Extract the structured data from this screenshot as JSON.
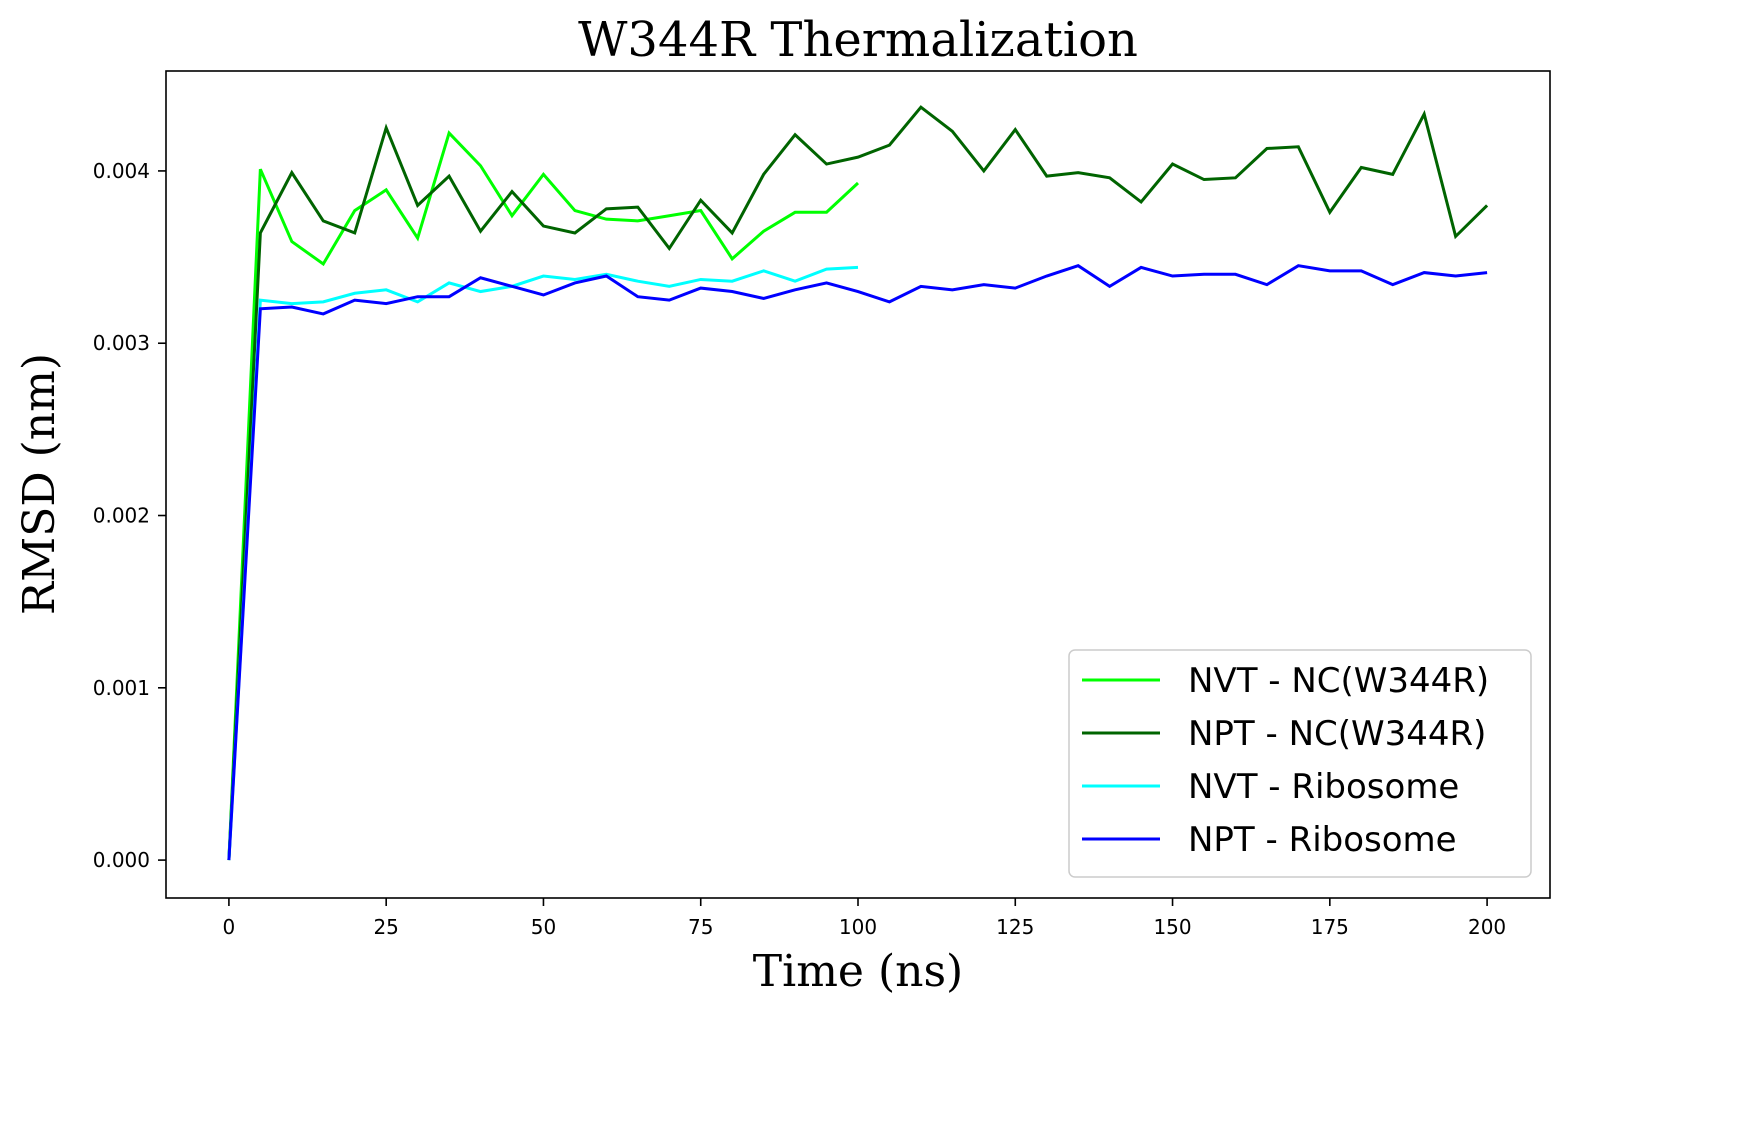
{
  "chart_data": {
    "type": "line",
    "title": "W344R Thermalization",
    "xlabel": "Time (ns)",
    "ylabel": "RMSD (nm)",
    "xlim": [
      -10,
      210
    ],
    "ylim": [
      -0.00022,
      0.00458
    ],
    "xticks": [
      0,
      25,
      50,
      75,
      100,
      125,
      150,
      175,
      200
    ],
    "xtick_labels": [
      "0",
      "25",
      "50",
      "75",
      "100",
      "125",
      "150",
      "175",
      "200"
    ],
    "yticks": [
      0,
      0.001,
      0.002,
      0.003,
      0.004
    ],
    "ytick_labels": [
      "0.000",
      "0.001",
      "0.002",
      "0.003",
      "0.004"
    ],
    "grid": false,
    "legend_position": "lower-right",
    "series": [
      {
        "name": "NVT - NC(W344R)",
        "color": "#00ff00",
        "x": [
          0,
          5,
          10,
          15,
          20,
          25,
          30,
          35,
          40,
          45,
          50,
          55,
          60,
          65,
          70,
          75,
          80,
          85,
          90,
          95,
          100
        ],
        "y": [
          0,
          0.00401,
          0.00359,
          0.00346,
          0.00377,
          0.00389,
          0.00361,
          0.00422,
          0.00403,
          0.00374,
          0.00398,
          0.00377,
          0.00372,
          0.00371,
          0.00374,
          0.00377,
          0.00349,
          0.00365,
          0.00376,
          0.00376,
          0.00393
        ]
      },
      {
        "name": "NPT - NC(W344R)",
        "color": "#006400",
        "x": [
          0,
          5,
          10,
          15,
          20,
          25,
          30,
          35,
          40,
          45,
          50,
          55,
          60,
          65,
          70,
          75,
          80,
          85,
          90,
          95,
          100,
          105,
          110,
          115,
          120,
          125,
          130,
          135,
          140,
          145,
          150,
          155,
          160,
          165,
          170,
          175,
          180,
          185,
          190,
          195,
          200
        ],
        "y": [
          0,
          0.00364,
          0.00399,
          0.00371,
          0.00364,
          0.00425,
          0.0038,
          0.00397,
          0.00365,
          0.00388,
          0.00368,
          0.00364,
          0.00378,
          0.00379,
          0.00355,
          0.00383,
          0.00364,
          0.00398,
          0.00421,
          0.00404,
          0.00408,
          0.00415,
          0.00437,
          0.00423,
          0.004,
          0.00424,
          0.00397,
          0.00399,
          0.00396,
          0.00382,
          0.00404,
          0.00395,
          0.00396,
          0.00413,
          0.00414,
          0.00376,
          0.00402,
          0.00398,
          0.00433,
          0.00362,
          0.0038
        ]
      },
      {
        "name": "NVT - Ribosome",
        "color": "#00ffff",
        "x": [
          0,
          5,
          10,
          15,
          20,
          25,
          30,
          35,
          40,
          45,
          50,
          55,
          60,
          65,
          70,
          75,
          80,
          85,
          90,
          95,
          100
        ],
        "y": [
          0,
          0.00325,
          0.00323,
          0.00324,
          0.00329,
          0.00331,
          0.00324,
          0.00335,
          0.0033,
          0.00333,
          0.00339,
          0.00337,
          0.0034,
          0.00336,
          0.00333,
          0.00337,
          0.00336,
          0.00342,
          0.00336,
          0.00343,
          0.00344
        ]
      },
      {
        "name": "NPT - Ribosome",
        "color": "#0000ff",
        "x": [
          0,
          5,
          10,
          15,
          20,
          25,
          30,
          35,
          40,
          45,
          50,
          55,
          60,
          65,
          70,
          75,
          80,
          85,
          90,
          95,
          100,
          105,
          110,
          115,
          120,
          125,
          130,
          135,
          140,
          145,
          150,
          155,
          160,
          165,
          170,
          175,
          180,
          185,
          190,
          195,
          200
        ],
        "y": [
          0,
          0.0032,
          0.00321,
          0.00317,
          0.00325,
          0.00323,
          0.00327,
          0.00327,
          0.00338,
          0.00333,
          0.00328,
          0.00335,
          0.00339,
          0.00327,
          0.00325,
          0.00332,
          0.0033,
          0.00326,
          0.00331,
          0.00335,
          0.0033,
          0.00324,
          0.00333,
          0.00331,
          0.00334,
          0.00332,
          0.00339,
          0.00345,
          0.00333,
          0.00344,
          0.00339,
          0.0034,
          0.0034,
          0.00334,
          0.00345,
          0.00342,
          0.00342,
          0.00334,
          0.00341,
          0.00339,
          0.00341
        ]
      }
    ]
  }
}
